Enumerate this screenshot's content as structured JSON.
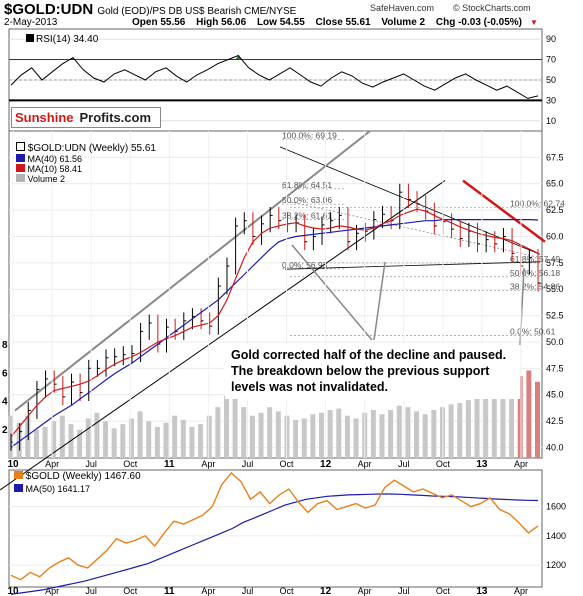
{
  "header": {
    "symbol": "$GOLD:UDN",
    "description": "Gold (EOD)/PS DB US$ Bearish  CME/NYSE",
    "date": "2-May-2013",
    "open": "Open 55.56",
    "high": "High 56.06",
    "low": "Low 54.55",
    "close": "Close 55.61",
    "volume": "Volume 2",
    "chg": "Chg -0.03 (-0.05%)",
    "chg_marker": "▼",
    "source1": "SafeHaven.com",
    "source2": "© StockCharts.com"
  },
  "logo": {
    "part1": "Sunshine",
    "part2": "Profits.com"
  },
  "annotation": "Gold corrected half of the decline and paused. The breakdown below the previous support levels was not invalidated.",
  "colors": {
    "price": "#000000",
    "ma_long": "#1c1ca8",
    "ma_short": "#d01818",
    "volume": "#c8c8c8",
    "volume_down": "#d98080",
    "gold_line": "#e8801c",
    "rsi_fill": "#2a7a2a",
    "trend": "#d01818"
  },
  "chart_data": [
    {
      "type": "line",
      "title": "RSI(14) 34.40",
      "series": [
        {
          "name": "RSI(14)",
          "values": [
            45,
            55,
            62,
            50,
            58,
            66,
            72,
            60,
            52,
            48,
            56,
            60,
            55,
            50,
            58,
            62,
            54,
            48,
            55,
            60,
            66,
            70,
            74,
            62,
            55,
            50,
            56,
            62,
            55,
            48,
            44,
            52,
            58,
            54,
            47,
            43,
            48,
            52,
            56,
            50,
            44,
            40,
            46,
            52,
            56,
            50,
            45,
            40,
            44,
            38,
            32,
            34.4
          ]
        }
      ],
      "x_range": [
        "Jan 2010",
        "Apr 2013"
      ],
      "ylim": [
        0,
        100
      ],
      "y_ticks": [
        10,
        30,
        50,
        70,
        90
      ],
      "reference_lines": [
        30,
        50,
        70
      ]
    },
    {
      "type": "line",
      "title": "$GOLD:UDN (Weekly) 55.61",
      "series": [
        {
          "name": "$GOLD:UDN (Weekly) 55.61",
          "values": [
            40.5,
            41.5,
            43.5,
            45.5,
            46.5,
            46,
            44.8,
            46.2,
            45.2,
            47.5,
            47.5,
            48.5,
            48.6,
            48.8,
            48.9,
            51,
            51.8,
            49.8,
            51.4,
            51,
            52,
            52.4,
            52,
            51.5,
            55.3,
            57.2,
            61,
            61.5,
            60,
            61.2,
            62,
            61.5,
            61.2,
            61.3,
            59.5,
            60,
            61.1,
            61.5,
            62,
            59.5,
            60.3,
            60.5,
            61.6,
            62.1,
            61.5,
            64.2,
            63.5,
            63.1,
            62.4,
            61,
            61.4,
            60.7,
            59.8,
            60.5,
            59.3,
            59.7,
            59.3,
            60,
            58.4,
            57.2,
            58,
            55.6
          ]
        },
        {
          "name": "MA(40) 61.56",
          "values": [
            40,
            40.6,
            41.2,
            41.8,
            42.4,
            43,
            43.5,
            44,
            44.6,
            45.2,
            45.8,
            46.4,
            47,
            47.5,
            48,
            48.6,
            49.2,
            49.8,
            50.4,
            51,
            51.6,
            52.2,
            52.8,
            53.4,
            54,
            54.8,
            55.6,
            56.4,
            57.2,
            58,
            58.8,
            59.5,
            59.8,
            60,
            60.1,
            60.2,
            60.3,
            60.4,
            60.5,
            60.6,
            60.7,
            60.8,
            60.9,
            61,
            61.1,
            61.2,
            61.3,
            61.4,
            61.5,
            61.5,
            61.6,
            61.6,
            61.6,
            61.6,
            61.6,
            61.6,
            61.6,
            61.6,
            61.6,
            61.6,
            61.6,
            61.56
          ]
        },
        {
          "name": "MA(10) 58.41",
          "values": [
            41,
            42,
            43,
            44,
            44.8,
            45.4,
            45.6,
            45.8,
            46,
            46.3,
            46.8,
            47.4,
            47.9,
            48.3,
            48.6,
            49,
            49.5,
            50,
            50.3,
            50.6,
            51,
            51.4,
            51.6,
            51.8,
            52.5,
            54,
            56,
            58,
            59.5,
            60.3,
            60.8,
            61,
            61.2,
            61.3,
            61,
            60.8,
            60.7,
            60.8,
            61,
            60.9,
            60.7,
            60.6,
            60.8,
            61.2,
            61.5,
            62,
            62.3,
            62.6,
            62.4,
            62,
            61.6,
            61.3,
            60.9,
            60.6,
            60.3,
            60.1,
            59.9,
            59.8,
            59.6,
            59.2,
            58.8,
            58.41
          ]
        },
        {
          "name": "Volume 2",
          "values": [
            3,
            2.5,
            3,
            2,
            2.2,
            2.6,
            3,
            2.4,
            2,
            2.8,
            3.2,
            2.6,
            2.1,
            2.4,
            2.8,
            3.3,
            2.6,
            2.2,
            2.5,
            3,
            2.7,
            2.2,
            2.4,
            3,
            3.6,
            4.4,
            4.2,
            3.6,
            3,
            3.2,
            3.6,
            3.3,
            3,
            2.7,
            2.8,
            3.1,
            3.2,
            3.4,
            3.5,
            3,
            2.8,
            3.2,
            3.4,
            3.1,
            3.4,
            3.7,
            3.6,
            3.3,
            3.1,
            3.4,
            3.6,
            3.8,
            3.9,
            4.1,
            4.3,
            4.4,
            4.6,
            4.4,
            4.8,
            5.8,
            6.2,
            5.4
          ]
        }
      ],
      "x_ticks": [
        "10",
        "Apr",
        "Jul",
        "Oct",
        "11",
        "Apr",
        "Jul",
        "Oct",
        "12",
        "Apr",
        "Jul",
        "Oct",
        "13",
        "Apr"
      ],
      "y_ticks": [
        40,
        42.5,
        45,
        47.5,
        50,
        52.5,
        55,
        57.5,
        60,
        62.5,
        65,
        67.5
      ],
      "y_ticks_labels": [
        "40.0",
        "42.5",
        "45.0",
        "47.5",
        "50.0",
        "52.5",
        "55.0",
        "57.5",
        "60.0",
        "62.5",
        "65.0",
        "67.5"
      ],
      "volume_ticks": [
        "2",
        "4",
        "6",
        "8"
      ],
      "ylim": [
        39,
        70
      ],
      "fibonacci": [
        {
          "label": "100.0%: 69.19",
          "value": 69.19
        },
        {
          "label": "61.8%: 64.51",
          "value": 64.51
        },
        {
          "label": "50.0%: 63.06",
          "value": 63.06
        },
        {
          "label": "38.2%: 61.61",
          "value": 61.61
        },
        {
          "label": "0.0%: 56.93",
          "value": 56.93
        },
        {
          "label": "100.0%: 62.74",
          "value": 62.74
        },
        {
          "label": "61.8%: 57.49",
          "value": 57.49
        },
        {
          "label": "50.0%: 56.18",
          "value": 56.18
        },
        {
          "label": "38.2%: 54.86",
          "value": 54.86
        },
        {
          "label": "0.0%: 50.61",
          "value": 50.61
        }
      ]
    },
    {
      "type": "line",
      "title": "$GOLD (Weekly) 1467.60",
      "series": [
        {
          "name": "$GOLD (Weekly) 1467.60",
          "values": [
            1130,
            1100,
            1150,
            1120,
            1180,
            1220,
            1250,
            1200,
            1180,
            1240,
            1300,
            1380,
            1350,
            1370,
            1400,
            1330,
            1420,
            1500,
            1480,
            1510,
            1540,
            1600,
            1750,
            1830,
            1770,
            1650,
            1700,
            1620,
            1680,
            1720,
            1630,
            1560,
            1620,
            1640,
            1580,
            1600,
            1620,
            1590,
            1610,
            1730,
            1780,
            1740,
            1700,
            1720,
            1690,
            1660,
            1680,
            1640,
            1600,
            1620,
            1660,
            1580,
            1550,
            1490,
            1420,
            1467.6
          ]
        },
        {
          "name": "MA(50) 1641.17",
          "values": [
            1000,
            1010,
            1020,
            1030,
            1045,
            1060,
            1075,
            1090,
            1110,
            1130,
            1150,
            1170,
            1190,
            1210,
            1240,
            1270,
            1300,
            1330,
            1360,
            1390,
            1420,
            1450,
            1490,
            1520,
            1550,
            1580,
            1610,
            1630,
            1650,
            1660,
            1670,
            1675,
            1680,
            1682,
            1684,
            1686,
            1686,
            1684,
            1680,
            1676,
            1672,
            1670,
            1668,
            1664,
            1660,
            1656,
            1652,
            1648,
            1645,
            1643,
            1641.17
          ]
        }
      ],
      "x_ticks": [
        "10",
        "Apr",
        "Jul",
        "Oct",
        "11",
        "Apr",
        "Jul",
        "Oct",
        "12",
        "Apr",
        "Jul",
        "Oct",
        "13",
        "Apr"
      ],
      "y_ticks": [
        1200,
        1400,
        1600
      ],
      "ylim": [
        1050,
        1850
      ]
    }
  ]
}
